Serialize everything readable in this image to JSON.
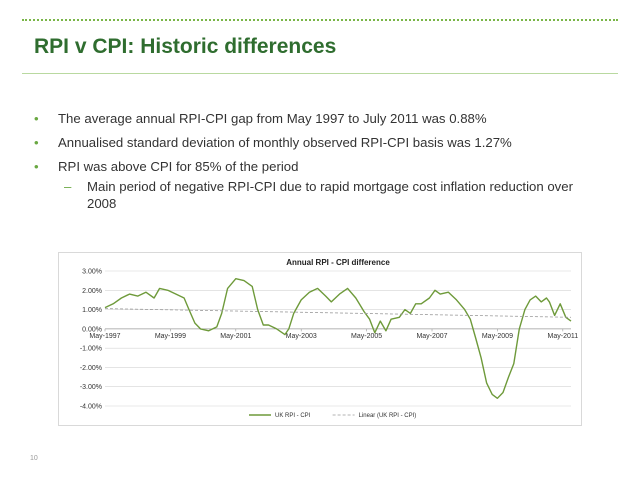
{
  "slide": {
    "title": "RPI v CPI: Historic differences",
    "page_number": "10",
    "accent_color": "#2f6d2f",
    "bullet_color": "#6aa842"
  },
  "bullets": [
    {
      "marker": "•",
      "text": "The average annual RPI-CPI gap from May 1997 to July 2011 was 0.88%"
    },
    {
      "marker": "•",
      "text": "Annualised standard deviation of monthly observed RPI-CPI basis was 1.27%"
    },
    {
      "marker": "•",
      "text": "RPI was above CPI for 85% of the period"
    },
    {
      "marker": "–",
      "text": "Main period of negative RPI-CPI due to rapid mortgage cost inflation reduction over 2008",
      "level": 2
    }
  ],
  "chart_data": {
    "type": "line",
    "title": "Annual RPI - CPI difference",
    "xlabel": "",
    "ylabel": "",
    "x_tick_labels": [
      "May-1997",
      "May-1999",
      "May-2001",
      "May-2003",
      "May-2005",
      "May-2007",
      "May-2009",
      "May-2011"
    ],
    "y_tick_labels": [
      "3.00%",
      "2.00%",
      "1.00%",
      "0.00%",
      "-1.00%",
      "-2.00%",
      "-3.00%",
      "-4.00%"
    ],
    "ylim": [
      -4,
      3
    ],
    "xlim": [
      1997.33,
      2011.58
    ],
    "grid": "horizontal",
    "legend_position": "bottom",
    "series": [
      {
        "name": "UK RPI - CPI",
        "color": "#6e9a3a",
        "style": "solid",
        "points": [
          [
            1997.33,
            1.1
          ],
          [
            1997.58,
            1.3
          ],
          [
            1997.83,
            1.6
          ],
          [
            1998.08,
            1.8
          ],
          [
            1998.33,
            1.7
          ],
          [
            1998.58,
            1.9
          ],
          [
            1998.83,
            1.6
          ],
          [
            1999.0,
            2.1
          ],
          [
            1999.25,
            2.0
          ],
          [
            1999.5,
            1.8
          ],
          [
            1999.75,
            1.6
          ],
          [
            1999.9,
            1.0
          ],
          [
            2000.08,
            0.3
          ],
          [
            2000.25,
            0.0
          ],
          [
            2000.5,
            -0.1
          ],
          [
            2000.75,
            0.1
          ],
          [
            2000.9,
            0.8
          ],
          [
            2001.08,
            2.1
          ],
          [
            2001.33,
            2.6
          ],
          [
            2001.58,
            2.5
          ],
          [
            2001.83,
            2.2
          ],
          [
            2002.0,
            1.0
          ],
          [
            2002.17,
            0.2
          ],
          [
            2002.33,
            0.2
          ],
          [
            2002.58,
            0.0
          ],
          [
            2002.83,
            -0.3
          ],
          [
            2002.95,
            0.0
          ],
          [
            2003.1,
            0.8
          ],
          [
            2003.33,
            1.5
          ],
          [
            2003.58,
            1.9
          ],
          [
            2003.83,
            2.1
          ],
          [
            2004.08,
            1.7
          ],
          [
            2004.25,
            1.4
          ],
          [
            2004.5,
            1.8
          ],
          [
            2004.75,
            2.1
          ],
          [
            2005.0,
            1.6
          ],
          [
            2005.25,
            0.9
          ],
          [
            2005.42,
            0.5
          ],
          [
            2005.58,
            -0.2
          ],
          [
            2005.75,
            0.4
          ],
          [
            2005.92,
            -0.1
          ],
          [
            2006.08,
            0.5
          ],
          [
            2006.33,
            0.6
          ],
          [
            2006.5,
            1.0
          ],
          [
            2006.67,
            0.8
          ],
          [
            2006.83,
            1.3
          ],
          [
            2007.0,
            1.3
          ],
          [
            2007.25,
            1.6
          ],
          [
            2007.42,
            2.0
          ],
          [
            2007.58,
            1.8
          ],
          [
            2007.83,
            1.9
          ],
          [
            2008.08,
            1.5
          ],
          [
            2008.33,
            1.0
          ],
          [
            2008.5,
            0.5
          ],
          [
            2008.67,
            -0.5
          ],
          [
            2008.83,
            -1.5
          ],
          [
            2009.0,
            -2.8
          ],
          [
            2009.17,
            -3.4
          ],
          [
            2009.33,
            -3.6
          ],
          [
            2009.5,
            -3.3
          ],
          [
            2009.67,
            -2.5
          ],
          [
            2009.83,
            -1.8
          ],
          [
            2010.0,
            0.0
          ],
          [
            2010.17,
            1.0
          ],
          [
            2010.33,
            1.5
          ],
          [
            2010.5,
            1.7
          ],
          [
            2010.67,
            1.4
          ],
          [
            2010.83,
            1.6
          ],
          [
            2010.92,
            1.4
          ],
          [
            2011.08,
            0.7
          ],
          [
            2011.25,
            1.3
          ],
          [
            2011.42,
            0.6
          ],
          [
            2011.58,
            0.4
          ]
        ]
      },
      {
        "name": "Linear (UK RPI - CPI)",
        "color": "#9a9a9a",
        "style": "dashed",
        "points": [
          [
            1997.33,
            1.05
          ],
          [
            2011.58,
            0.6
          ]
        ]
      }
    ]
  }
}
